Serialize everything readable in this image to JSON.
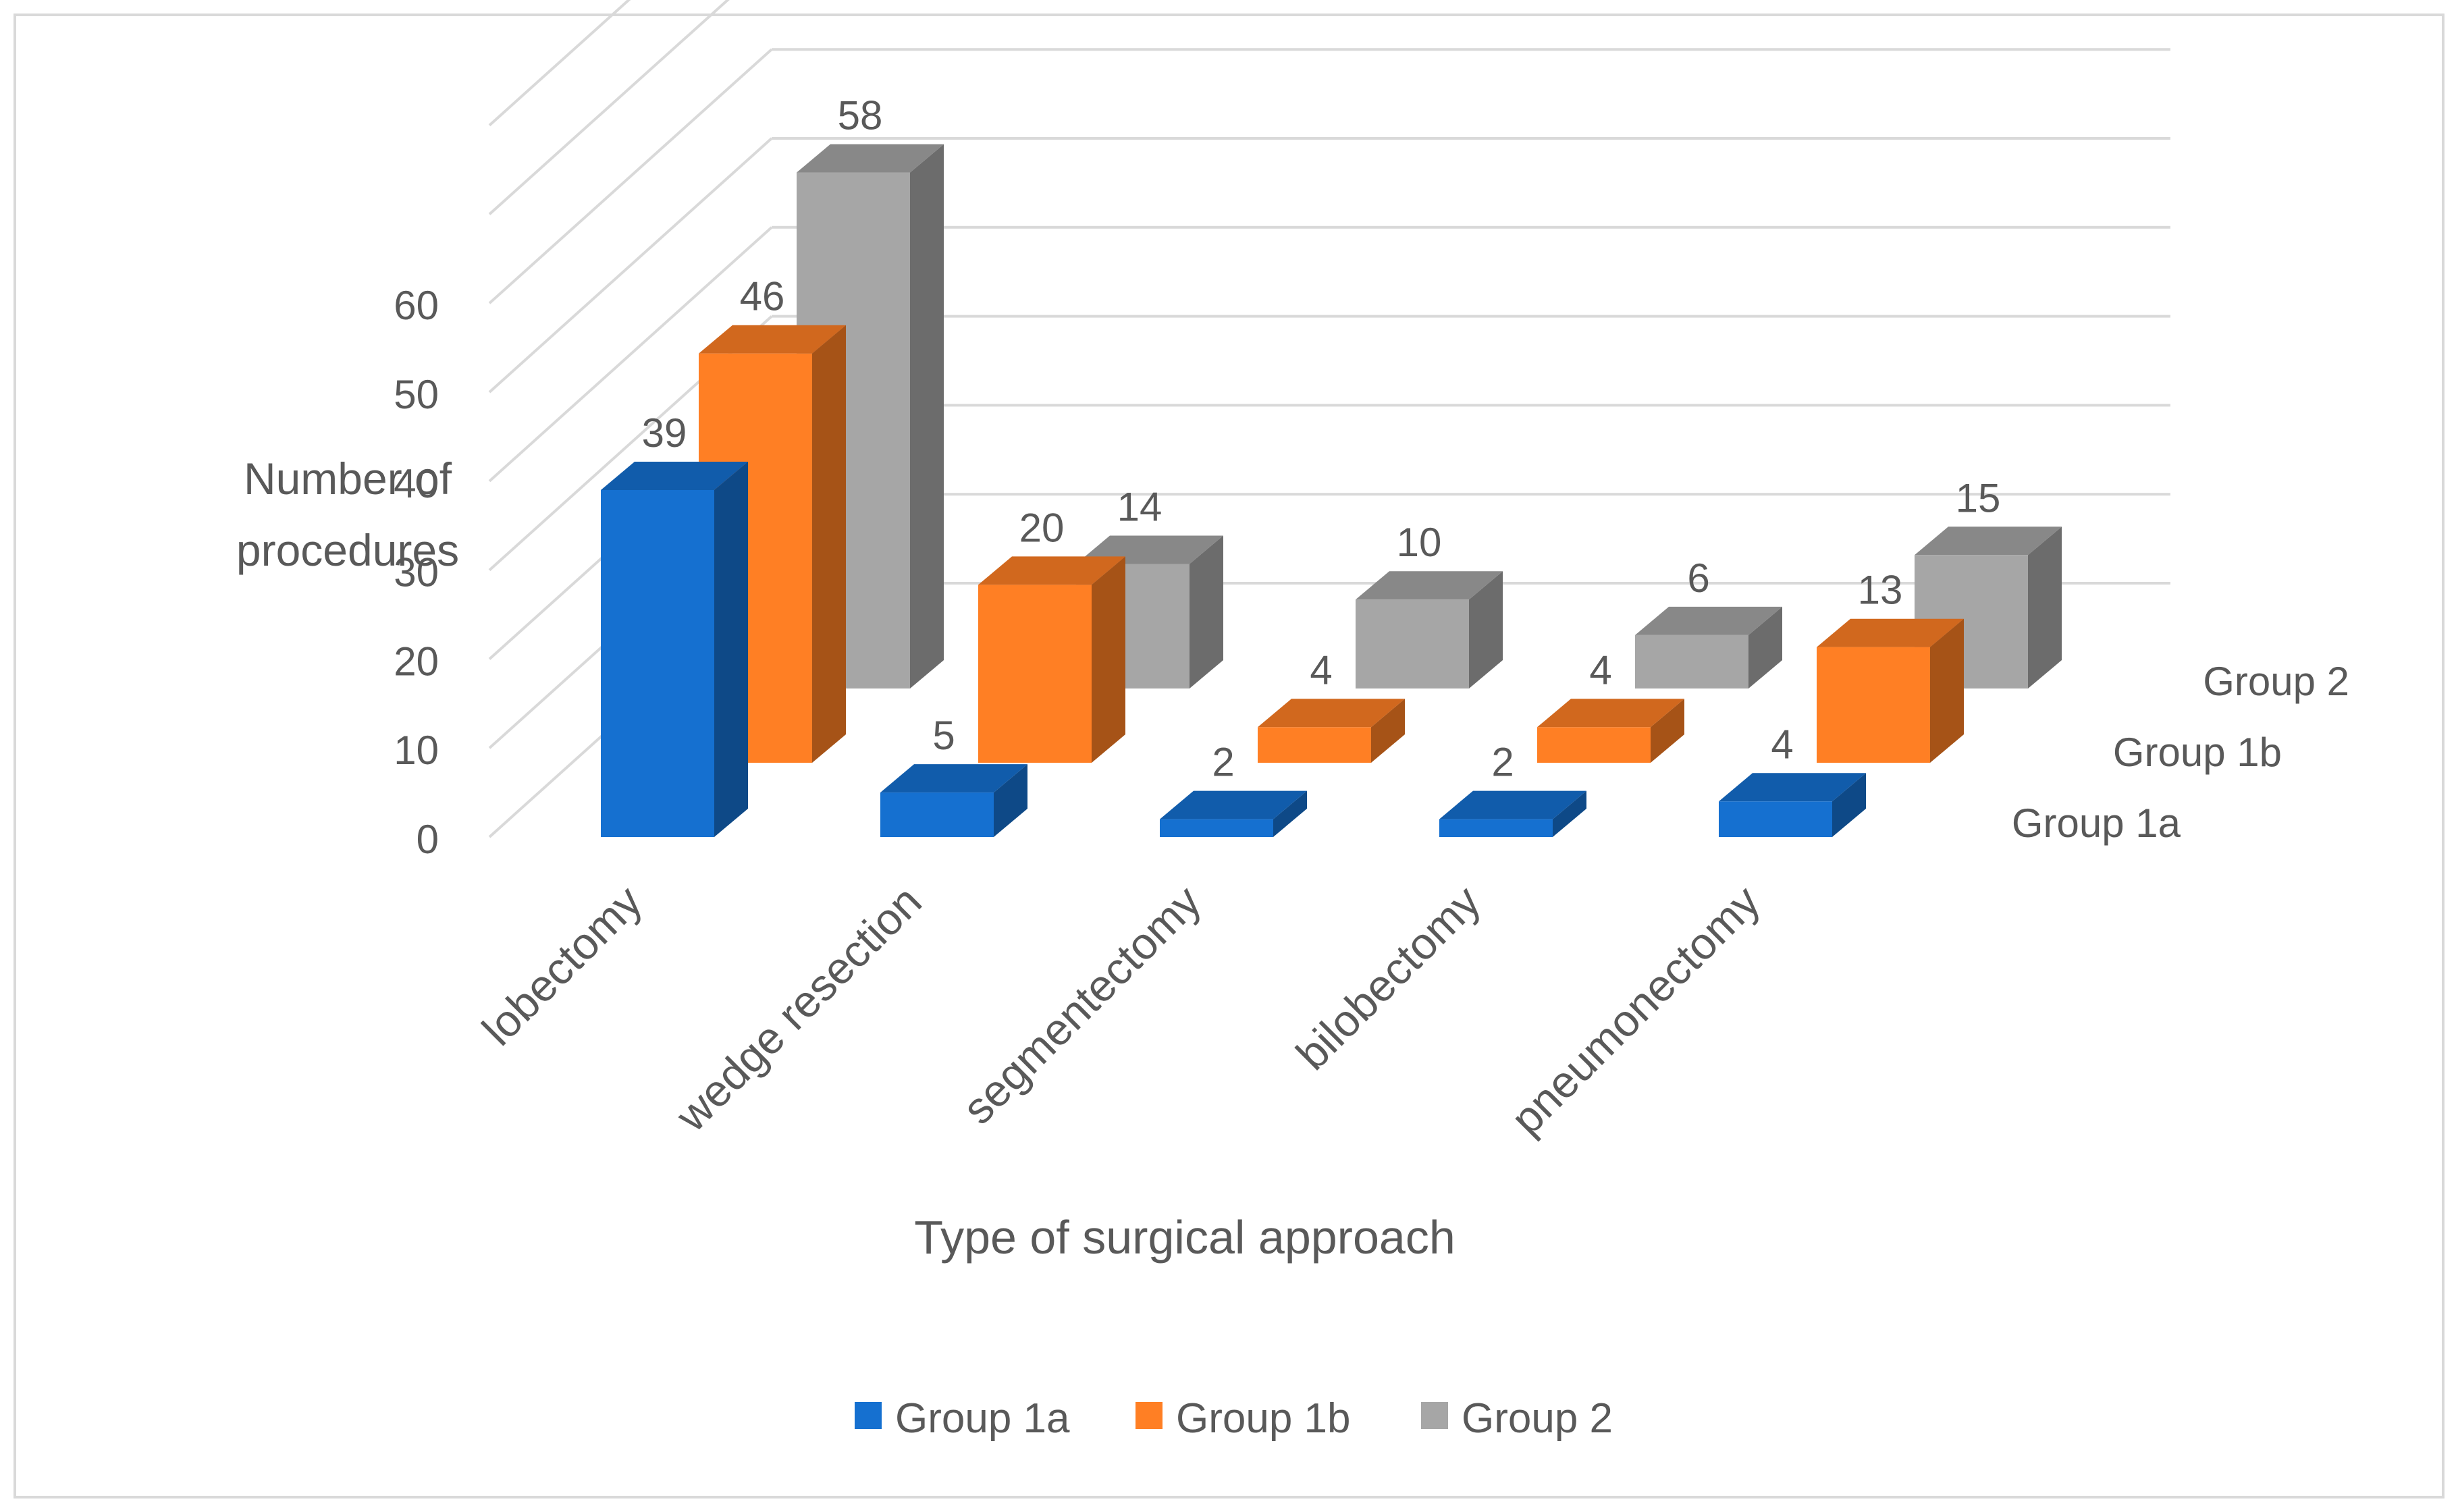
{
  "chart_data": {
    "type": "bar",
    "subtype": "3d-clustered-column",
    "title": "",
    "xlabel": "Type of surgical approach",
    "ylabel": "Number of procedures",
    "ylim": [
      0,
      60
    ],
    "yticks": [
      "0",
      "10",
      "20",
      "30",
      "40",
      "50",
      "60"
    ],
    "grid": true,
    "legend_position": "bottom",
    "categories": [
      "lobectomy",
      "wedge resection",
      "segmentectomy",
      "bilobectomy",
      "pneumonectomy"
    ],
    "series": [
      {
        "name": "Group 1a",
        "values": [
          39,
          5,
          2,
          2,
          4
        ],
        "color": "#1570D0"
      },
      {
        "name": "Group 1b",
        "values": [
          46,
          20,
          4,
          4,
          13
        ],
        "color": "#FF7F24"
      },
      {
        "name": "Group 2",
        "values": [
          58,
          14,
          10,
          6,
          15
        ],
        "color": "#A6A6A6"
      }
    ],
    "depth_axis_labels": [
      "Group 1a",
      "Group 1b",
      "Group 2"
    ],
    "colors": {
      "text": "#595959",
      "grid": "#D9D9D9",
      "border": "#D9D9D9"
    }
  }
}
